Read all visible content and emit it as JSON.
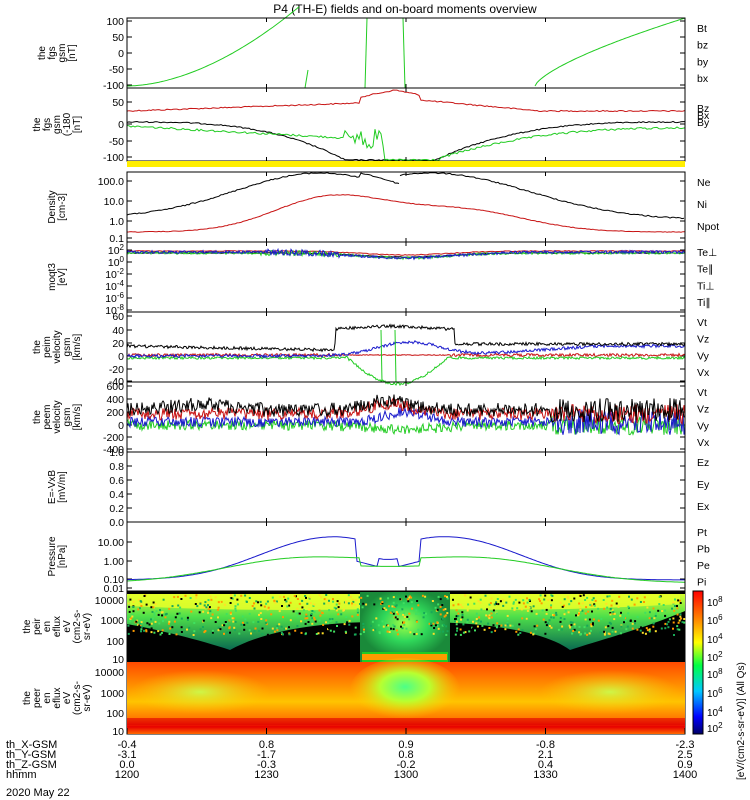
{
  "title": "P4 (TH-E) fields and on-board moments overview",
  "date_label": "2020 May 22",
  "colors": {
    "black": "#000000",
    "red": "#c81414",
    "green": "#22cc22",
    "blue": "#1a1acc",
    "yellow": "#ffee00"
  },
  "ephemeris": {
    "rows": [
      {
        "label": "th_X-GSM",
        "values": [
          "-0.4",
          "0.8",
          "0.9",
          "-0.8",
          "-2.3"
        ]
      },
      {
        "label": "th_Y-GSM",
        "values": [
          "-3.1",
          "-1.7",
          "0.8",
          "2.1",
          "2.5"
        ]
      },
      {
        "label": "th_Z-GSM",
        "values": [
          "0.0",
          "-0.3",
          "-0.2",
          "0.4",
          "0.9"
        ]
      },
      {
        "label": "hhmm",
        "values": [
          "1200",
          "1230",
          "1300",
          "1330",
          "1400"
        ]
      }
    ]
  },
  "chart_data": [
    {
      "type": "line",
      "id": "fgs_gsm",
      "ylabel_lines": [
        "the",
        "fgs",
        "gsm",
        "[nT]"
      ],
      "yticks": [
        "100",
        "50",
        "0",
        "-50",
        "-100"
      ],
      "legend": [
        {
          "name": "Bt",
          "color": "#000000"
        },
        {
          "name": "bz",
          "color": "#c81414"
        },
        {
          "name": "by",
          "color": "#22cc22"
        },
        {
          "name": "bx",
          "color": "#1a1acc"
        }
      ]
    },
    {
      "type": "line",
      "id": "fgs_gsm_lp",
      "ylabel_lines": [
        "the",
        "fgs",
        "gsm",
        "(-180",
        "[nT]"
      ],
      "yticks": [
        "50",
        "0",
        "-50",
        "-100"
      ],
      "legend": [
        {
          "name": "Bz",
          "color": "#c81414"
        },
        {
          "name": "Bx",
          "color": "#000000"
        },
        {
          "name": "By",
          "color": "#22cc22"
        }
      ]
    },
    {
      "type": "line",
      "id": "density",
      "ylabel_lines": [
        "Density",
        "[cm-3]"
      ],
      "yticks": [
        "100.0",
        "10.0",
        "1.0",
        "0.1"
      ],
      "legend": [
        {
          "name": "Ne",
          "color": "#c81414"
        },
        {
          "name": "Ni",
          "color": "#000000"
        },
        {
          "name": "Npot",
          "color": "#1a1acc"
        }
      ]
    },
    {
      "type": "line",
      "id": "temperature",
      "ylabel_lines": [
        "moqt3",
        "[eV]"
      ],
      "yticks": [
        "10^2",
        "10^0",
        "10^-2",
        "10^-4",
        "10^-6",
        "10^-8",
        "10^-10"
      ],
      "legend": [
        {
          "name": "Te⊥",
          "color": "#c81414"
        },
        {
          "name": "Te∥",
          "color": "#000000"
        },
        {
          "name": "Ti⊥",
          "color": "#1a1acc"
        },
        {
          "name": "Ti∥",
          "color": "#22cc22"
        }
      ]
    },
    {
      "type": "line",
      "id": "peim_vel",
      "ylabel_lines": [
        "the",
        "peim",
        "velocity",
        "gsm",
        "[km/s]"
      ],
      "yticks": [
        "60",
        "40",
        "20",
        "0",
        "-20",
        "-40"
      ],
      "legend": [
        {
          "name": "Vt",
          "color": "#000000"
        },
        {
          "name": "Vz",
          "color": "#c81414"
        },
        {
          "name": "Vy",
          "color": "#22cc22"
        },
        {
          "name": "Vx",
          "color": "#1a1acc"
        }
      ]
    },
    {
      "type": "line",
      "id": "peem_vel",
      "ylabel_lines": [
        "the",
        "peem",
        "velocity",
        "gsm",
        "[km/s]"
      ],
      "yticks": [
        "600",
        "400",
        "200",
        "0",
        "-200",
        "-400"
      ],
      "legend": [
        {
          "name": "Vt",
          "color": "#000000"
        },
        {
          "name": "Vz",
          "color": "#c81414"
        },
        {
          "name": "Vy",
          "color": "#22cc22"
        },
        {
          "name": "Vx",
          "color": "#1a1acc"
        }
      ]
    },
    {
      "type": "line",
      "id": "efield",
      "ylabel_lines": [
        "E=-VxB",
        "[mV/m]"
      ],
      "yticks": [
        "1.0",
        "0.8",
        "0.6",
        "0.4",
        "0.2",
        "0.0"
      ],
      "legend": [
        {
          "name": "Ez",
          "color": "#c81414"
        },
        {
          "name": "Ey",
          "color": "#22cc22"
        },
        {
          "name": "Ex",
          "color": "#1a1acc"
        }
      ]
    },
    {
      "type": "line",
      "id": "pressure",
      "ylabel_lines": [
        "Pressure",
        "[nPa]"
      ],
      "yticks": [
        "10.00",
        "1.00",
        "0.10",
        "0.01"
      ],
      "legend": [
        {
          "name": "Pt",
          "color": "#000000"
        },
        {
          "name": "Pb",
          "color": "#c81414"
        },
        {
          "name": "Pe",
          "color": "#22cc22"
        },
        {
          "name": "Pi",
          "color": "#1a1acc"
        }
      ]
    },
    {
      "type": "heatmap",
      "id": "peir_spec",
      "ylabel_lines": [
        "the",
        "peir",
        "en",
        "eflux",
        "eV",
        "(cm2-s-",
        "sr-eV)"
      ],
      "yticks": [
        "10000",
        "1000",
        "100",
        "10"
      ]
    },
    {
      "type": "heatmap",
      "id": "peer_spec",
      "ylabel_lines": [
        "the",
        "peer",
        "en",
        "eflux",
        "eV",
        "(cm2-s-",
        "sr-eV)"
      ],
      "yticks": [
        "10000",
        "1000",
        "100",
        "10"
      ]
    }
  ],
  "colorbar": {
    "ticks": [
      "10^8",
      "10^6",
      "10^4",
      "10^2",
      "10^8",
      "10^6",
      "10^4",
      "10^2"
    ],
    "label": "[eV/(cm2-s-sr-eV)] (All Qs)"
  }
}
